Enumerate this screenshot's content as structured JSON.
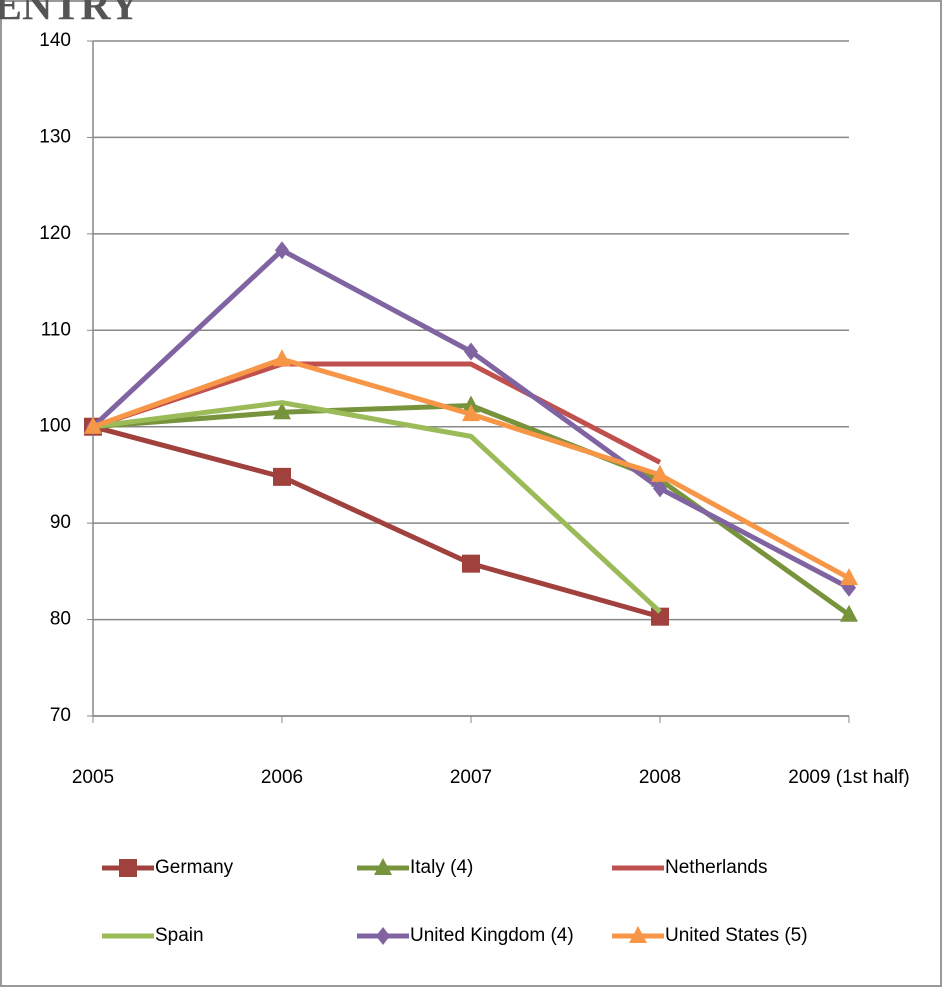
{
  "chart_data": {
    "type": "line",
    "title": "ENTRY",
    "categories": [
      "2005",
      "2006",
      "2007",
      "2008",
      "2009 (1st half)"
    ],
    "series": [
      {
        "name": "Germany",
        "color": "#a0413e",
        "marker": "square",
        "values": [
          100,
          94.8,
          85.8,
          80.3,
          null
        ]
      },
      {
        "name": "Italy (4)",
        "color": "#77933c",
        "marker": "triangle",
        "values": [
          100,
          101.5,
          102.2,
          94.5,
          80.5
        ]
      },
      {
        "name": "Netherlands",
        "color": "#c0504d",
        "marker": "none",
        "values": [
          100,
          106.5,
          106.5,
          96.3,
          null
        ]
      },
      {
        "name": "Spain",
        "color": "#9bbb59",
        "marker": "none",
        "values": [
          100,
          102.5,
          99,
          80.8,
          null
        ]
      },
      {
        "name": "United Kingdom (4)",
        "color": "#8064a2",
        "marker": "diamond",
        "values": [
          100,
          118.3,
          107.8,
          93.6,
          83.3
        ]
      },
      {
        "name": "United States (5)",
        "color": "#f79646",
        "marker": "triangle",
        "values": [
          100,
          107,
          101.3,
          95,
          84.3
        ]
      }
    ],
    "ylim": [
      70,
      140
    ],
    "yticks": [
      70,
      80,
      90,
      100,
      110,
      120,
      130,
      140
    ],
    "grid": true,
    "legend": "bottom"
  }
}
